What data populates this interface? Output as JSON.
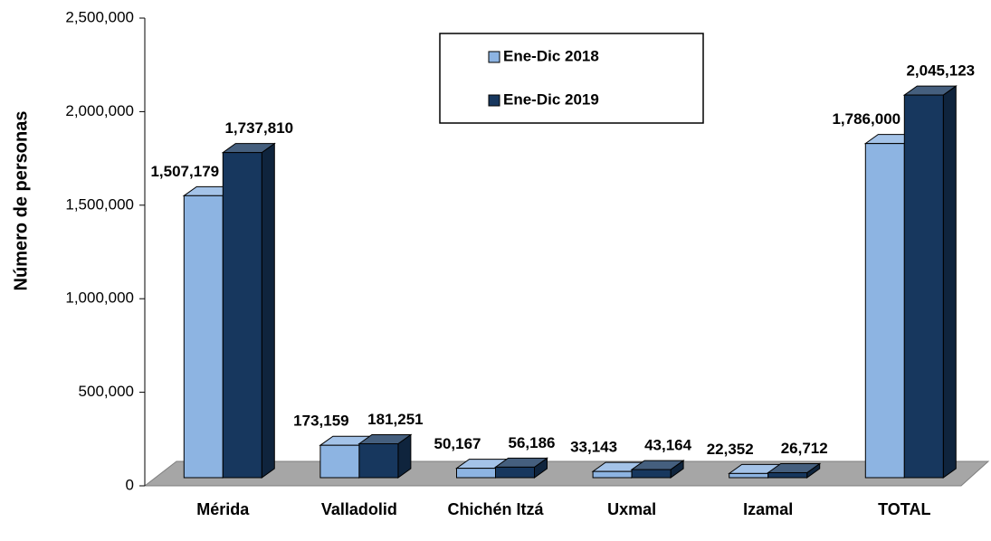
{
  "chart_data": {
    "type": "bar3d",
    "y_label": "Número de personas",
    "categories": [
      "Mérida",
      "Valladolid",
      "Chichén Itzá",
      "Uxmal",
      "Izamal",
      "TOTAL"
    ],
    "series": [
      {
        "name": "Ene-Dic 2018",
        "color": "#8db4e2",
        "values": [
          1507179,
          173159,
          50167,
          33143,
          22352,
          1786000
        ],
        "value_labels": [
          "1,507,179",
          "173,159",
          "50,167",
          "33,143",
          "22,352",
          "1,786,000"
        ]
      },
      {
        "name": "Ene-Dic 2019",
        "color": "#17375e",
        "values": [
          1737810,
          181251,
          56186,
          43164,
          26712,
          2045123
        ],
        "value_labels": [
          "1,737,810",
          "181,251",
          "56,186",
          "43,164",
          "26,712",
          "2,045,123"
        ]
      }
    ],
    "ylim": [
      0,
      2500000
    ],
    "yticks": [
      0,
      {
        "value": 500000,
        "label": "500,000"
      },
      {
        "value": 1000000,
        "label": "1,000,000"
      },
      {
        "value": 1500000,
        "label": "1,500,000"
      },
      {
        "value": 2000000,
        "label": "2,000,000"
      },
      {
        "value": 2500000,
        "label": "2,500,000"
      }
    ]
  }
}
